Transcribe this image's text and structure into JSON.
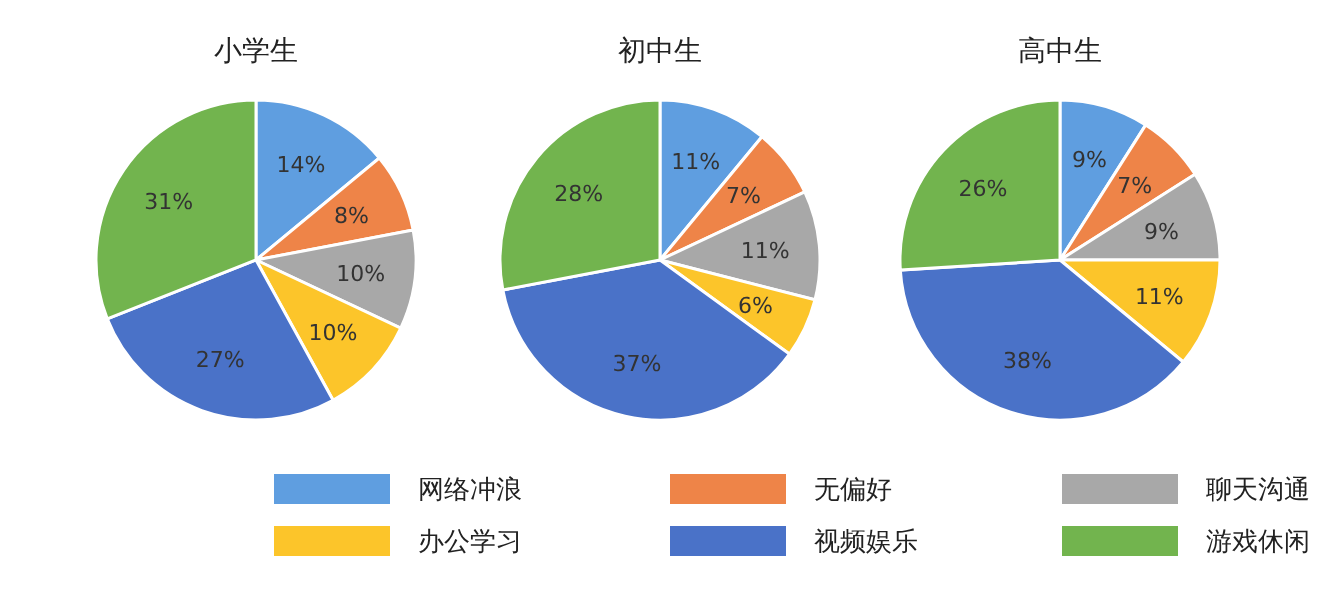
{
  "chart_data": [
    {
      "type": "pie",
      "title": "小学生",
      "categories": [
        "网络冲浪",
        "无偏好",
        "聊天沟通",
        "办公学习",
        "视频娱乐",
        "游戏休闲"
      ],
      "values": [
        14,
        8,
        10,
        10,
        27,
        31
      ],
      "value_labels": [
        "14%",
        "8%",
        "10%",
        "10%",
        "27%",
        "31%"
      ],
      "colors": [
        "#5f9ee0",
        "#ee8448",
        "#a8a8a8",
        "#fcc52a",
        "#4a72c8",
        "#72b44e"
      ],
      "legend": "bottom"
    },
    {
      "type": "pie",
      "title": "初中生",
      "categories": [
        null,
        null,
        null,
        null,
        null,
        null
      ],
      "values": [
        11,
        7,
        11,
        6,
        37,
        28
      ],
      "value_labels": [
        "11%",
        "7%",
        "11%",
        "6%",
        "37%",
        "28%"
      ],
      "colors": [
        "#5f9ee0",
        "#ee8448",
        "#a8a8a8",
        "#fcc52a",
        "#4a72c8",
        "#72b44e"
      ]
    },
    {
      "type": "pie",
      "title": "高中生",
      "categories": [
        null,
        null,
        null,
        null,
        null,
        null
      ],
      "values": [
        9,
        7,
        9,
        11,
        38,
        26
      ],
      "value_labels": [
        "9%",
        "7%",
        "9%",
        "11%",
        "38%",
        "26%"
      ],
      "colors": [
        "#5f9ee0",
        "#ee8448",
        "#a8a8a8",
        "#fcc52a",
        "#4a72c8",
        "#72b44e"
      ]
    }
  ]
}
